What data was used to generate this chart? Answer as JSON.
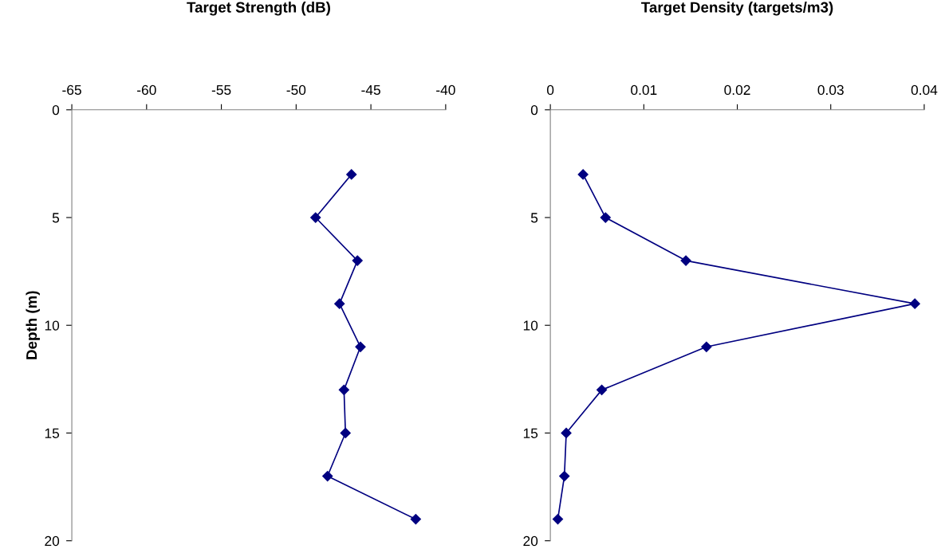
{
  "chart_data": [
    {
      "type": "line",
      "title": "Target Strength (dB)",
      "ylabel": "Depth (m)",
      "series": [
        {
          "color": "#000080",
          "x": [
            -46.3,
            -48.7,
            -45.9,
            -47.1,
            -45.7,
            -46.8,
            -46.7,
            -47.9,
            -42.0
          ],
          "values": [
            3,
            5,
            7,
            9,
            11,
            13,
            15,
            17,
            19
          ]
        }
      ],
      "xlim": [
        -65,
        -40
      ],
      "xticks": [
        -65,
        -60,
        -55,
        -50,
        -45,
        -40
      ],
      "ylim": [
        20,
        0
      ],
      "yticks": [
        0,
        5,
        10,
        15,
        20
      ],
      "marker": "diamond",
      "line_style": "solid",
      "grid": false,
      "legend": false
    },
    {
      "type": "line",
      "title": "Target Density (targets/m3)",
      "series": [
        {
          "color": "#000080",
          "x": [
            0.0035,
            0.0059,
            0.0145,
            0.039,
            0.0167,
            0.0055,
            0.0017,
            0.0015,
            0.0008
          ],
          "values": [
            3,
            5,
            7,
            9,
            11,
            13,
            15,
            17,
            19
          ]
        }
      ],
      "xlim": [
        0,
        0.04
      ],
      "xticks": [
        {
          "value": 0,
          "label": "0"
        },
        0.01,
        0.02,
        0.03,
        0.04
      ],
      "ylim": [
        20,
        0
      ],
      "yticks": [
        0,
        5,
        10,
        15,
        20
      ],
      "marker": "diamond",
      "line_style": "solid",
      "grid": false,
      "legend": false
    }
  ]
}
